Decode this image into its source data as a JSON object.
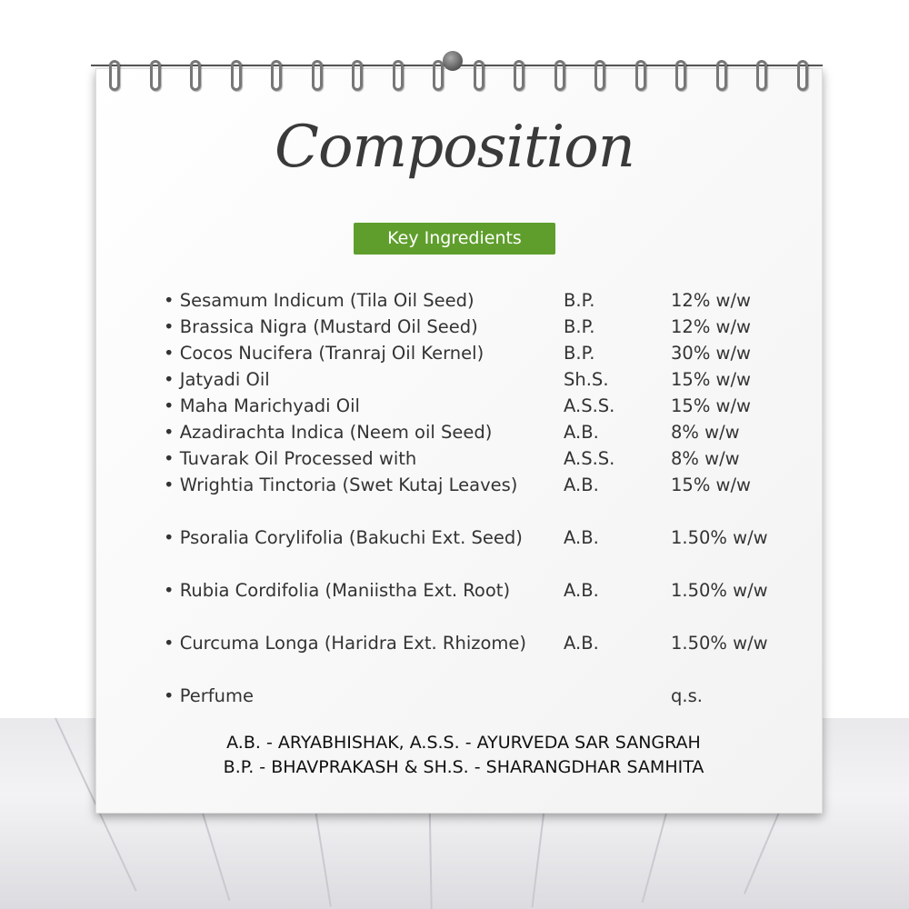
{
  "title": "Composition",
  "badge": "Key Ingredients",
  "ingredients": [
    {
      "name": "• Sesamum Indicum (Tila Oil Seed)",
      "source": "B.P.",
      "amount": "12% w/w"
    },
    {
      "name": "• Brassica Nigra (Mustard Oil Seed)",
      "source": "B.P.",
      "amount": "12% w/w"
    },
    {
      "name": "• Cocos Nucifera (Tranraj Oil Kernel)",
      "source": "B.P.",
      "amount": "30% w/w"
    },
    {
      "name": "• Jatyadi Oil",
      "source": "Sh.S.",
      "amount": "15% w/w"
    },
    {
      "name": "• Maha Marichyadi Oil",
      "source": "A.S.S.",
      "amount": "15% w/w"
    },
    {
      "name": "• Azadirachta Indica (Neem oil Seed)",
      "source": "A.B.",
      "amount": "8% w/w"
    },
    {
      "name": "• Tuvarak Oil Processed with",
      "source": "A.S.S.",
      "amount": "8% w/w"
    },
    {
      "name": "• Wrightia Tinctoria (Swet Kutaj Leaves)",
      "source": "A.B.",
      "amount": "15% w/w"
    },
    {
      "name": "• Psoralia Corylifolia (Bakuchi Ext. Seed)",
      "source": "A.B.",
      "amount": "1.50% w/w"
    },
    {
      "name": "• Rubia Cordifolia (Maniistha Ext. Root)",
      "source": "A.B.",
      "amount": "1.50% w/w"
    },
    {
      "name": "• Curcuma Longa (Haridra Ext. Rhizome)",
      "source": "A.B.",
      "amount": "1.50% w/w"
    },
    {
      "name": "• Perfume",
      "source": "",
      "amount": "q.s."
    }
  ],
  "legend": [
    "A.B. - ARYABHISHAK, A.S.S. - AYURVEDA SAR SANGRAH",
    "B.P. - BHAVPRAKASH & SH.S. - SHARANGDHAR SAMHITA"
  ],
  "colors": {
    "badge": "#5f9e2c",
    "text": "#333333"
  }
}
